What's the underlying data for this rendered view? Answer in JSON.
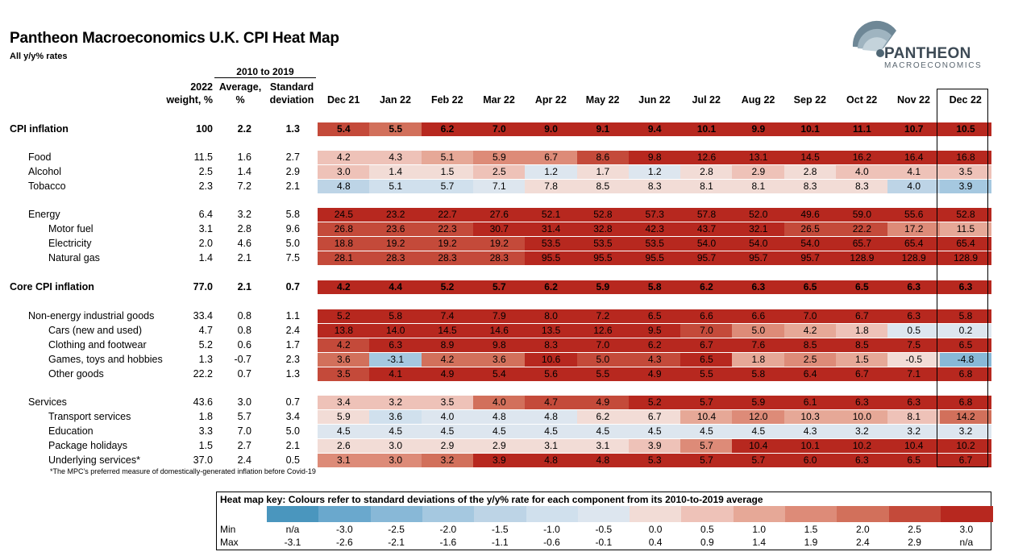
{
  "title": "Pantheon Macroeconomics U.K. CPI Heat Map",
  "subtitle": "All y/y% rates",
  "logo": {
    "word": "PANTHEON",
    "sub": "MACROECONOMICS"
  },
  "header": {
    "group": "2010 to 2019",
    "weight": [
      "2022",
      "weight, %"
    ],
    "average": [
      "Average,",
      "%"
    ],
    "stdev": [
      "Standard",
      "deviation"
    ]
  },
  "footnote": "*The MPC's preferred measure of domestically-generated inflation before Covid-19",
  "colors": {
    "levels": [
      "#4a96be",
      "#6aa8cd",
      "#88b8d7",
      "#a5c8e0",
      "#bdd4e6",
      "#d0e0ed",
      "#dde6ef",
      "#f2dcd6",
      "#eec2b8",
      "#e6a897",
      "#dd8b78",
      "#d2705b",
      "#c44a3a",
      "#b7281f"
    ]
  },
  "chart_data": {
    "type": "heatmap",
    "title": "Pantheon Macroeconomics U.K. CPI Heat Map",
    "months": [
      "Dec 21",
      "Jan 22",
      "Feb 22",
      "Mar 22",
      "Apr 22",
      "May 22",
      "Jun 22",
      "Jul 22",
      "Aug 22",
      "Sep 22",
      "Oct 22",
      "Nov 22",
      "Dec 22"
    ],
    "rows": [
      {
        "label": "CPI inflation",
        "bold": true,
        "indent": 0,
        "weight": "100",
        "avg": "2.2",
        "sd": "1.3",
        "values": [
          "5.4",
          "5.5",
          "6.2",
          "7.0",
          "9.0",
          "9.1",
          "9.4",
          "10.1",
          "9.9",
          "10.1",
          "11.1",
          "10.7",
          "10.5"
        ],
        "levels": [
          12,
          11,
          13,
          13,
          13,
          13,
          13,
          13,
          13,
          13,
          13,
          13,
          13
        ]
      },
      {
        "label": "Food",
        "bold": false,
        "indent": 1,
        "weight": "11.5",
        "avg": "1.6",
        "sd": "2.7",
        "values": [
          "4.2",
          "4.3",
          "5.1",
          "5.9",
          "6.7",
          "8.6",
          "9.8",
          "12.6",
          "13.1",
          "14.5",
          "16.2",
          "16.4",
          "16.8"
        ],
        "levels": [
          8,
          8,
          9,
          10,
          10,
          12,
          13,
          13,
          13,
          13,
          13,
          13,
          13
        ]
      },
      {
        "label": "Alcohol",
        "bold": false,
        "indent": 1,
        "weight": "2.5",
        "avg": "1.4",
        "sd": "2.9",
        "values": [
          "3.0",
          "1.4",
          "1.5",
          "2.5",
          "1.2",
          "1.7",
          "1.2",
          "2.8",
          "2.9",
          "2.8",
          "4.0",
          "4.1",
          "3.5"
        ],
        "levels": [
          8,
          7,
          7,
          8,
          6,
          7,
          6,
          7,
          8,
          7,
          8,
          8,
          8
        ]
      },
      {
        "label": "Tobacco",
        "bold": false,
        "indent": 1,
        "weight": "2.3",
        "avg": "7.2",
        "sd": "2.1",
        "values": [
          "4.8",
          "5.1",
          "5.7",
          "7.1",
          "7.8",
          "8.5",
          "8.3",
          "8.1",
          "8.1",
          "8.3",
          "8.3",
          "4.0",
          "3.9"
        ],
        "levels": [
          4,
          5,
          5,
          6,
          7,
          7,
          7,
          7,
          7,
          7,
          7,
          4,
          3
        ]
      },
      {
        "label": "Energy",
        "bold": false,
        "indent": 1,
        "weight": "6.4",
        "avg": "3.2",
        "sd": "5.8",
        "values": [
          "24.5",
          "23.2",
          "22.7",
          "27.6",
          "52.1",
          "52.8",
          "57.3",
          "57.8",
          "52.0",
          "49.6",
          "59.0",
          "55.6",
          "52.8"
        ],
        "levels": [
          13,
          13,
          13,
          13,
          13,
          13,
          13,
          13,
          13,
          13,
          13,
          13,
          13
        ]
      },
      {
        "label": "Motor fuel",
        "bold": false,
        "indent": 2,
        "weight": "3.1",
        "avg": "2.8",
        "sd": "9.6",
        "values": [
          "26.8",
          "23.6",
          "22.3",
          "30.7",
          "31.4",
          "32.8",
          "42.3",
          "43.7",
          "32.1",
          "26.5",
          "22.2",
          "17.2",
          "11.5"
        ],
        "levels": [
          12,
          12,
          12,
          13,
          13,
          13,
          13,
          13,
          13,
          12,
          12,
          10,
          9
        ]
      },
      {
        "label": "Electricity",
        "bold": false,
        "indent": 2,
        "weight": "2.0",
        "avg": "4.6",
        "sd": "5.0",
        "values": [
          "18.8",
          "19.2",
          "19.2",
          "19.2",
          "53.5",
          "53.5",
          "53.5",
          "54.0",
          "54.0",
          "54.0",
          "65.7",
          "65.4",
          "65.4"
        ],
        "levels": [
          12,
          12,
          12,
          12,
          13,
          13,
          13,
          13,
          13,
          13,
          13,
          13,
          13
        ]
      },
      {
        "label": "Natural gas",
        "bold": false,
        "indent": 2,
        "weight": "1.4",
        "avg": "2.1",
        "sd": "7.5",
        "values": [
          "28.1",
          "28.3",
          "28.3",
          "28.3",
          "95.5",
          "95.5",
          "95.5",
          "95.7",
          "95.7",
          "95.7",
          "128.9",
          "128.9",
          "128.9"
        ],
        "levels": [
          12,
          12,
          12,
          12,
          13,
          13,
          13,
          13,
          13,
          13,
          13,
          13,
          13
        ]
      },
      {
        "label": "Core CPI inflation",
        "bold": true,
        "indent": 0,
        "weight": "77.0",
        "avg": "2.1",
        "sd": "0.7",
        "values": [
          "4.2",
          "4.4",
          "5.2",
          "5.7",
          "6.2",
          "5.9",
          "5.8",
          "6.2",
          "6.3",
          "6.5",
          "6.5",
          "6.3",
          "6.3"
        ],
        "levels": [
          13,
          13,
          13,
          13,
          13,
          13,
          13,
          13,
          13,
          13,
          13,
          13,
          13
        ]
      },
      {
        "label": "Non-energy industrial goods",
        "bold": false,
        "indent": 1,
        "weight": "33.4",
        "avg": "0.8",
        "sd": "1.1",
        "values": [
          "5.2",
          "5.8",
          "7.4",
          "7.9",
          "8.0",
          "7.2",
          "6.5",
          "6.6",
          "6.6",
          "7.0",
          "6.7",
          "6.3",
          "5.8"
        ],
        "levels": [
          13,
          13,
          13,
          13,
          13,
          13,
          13,
          13,
          13,
          13,
          13,
          13,
          13
        ]
      },
      {
        "label": "Cars (new and used)",
        "bold": false,
        "indent": 2,
        "weight": "4.7",
        "avg": "0.8",
        "sd": "2.4",
        "values": [
          "13.8",
          "14.0",
          "14.5",
          "14.6",
          "13.5",
          "12.6",
          "9.5",
          "7.0",
          "5.0",
          "4.2",
          "1.8",
          "0.5",
          "0.2"
        ],
        "levels": [
          13,
          13,
          13,
          13,
          13,
          13,
          13,
          12,
          10,
          9,
          8,
          6,
          6
        ]
      },
      {
        "label": "Clothing and footwear",
        "bold": false,
        "indent": 2,
        "weight": "5.2",
        "avg": "0.6",
        "sd": "1.7",
        "values": [
          "4.2",
          "6.3",
          "8.9",
          "9.8",
          "8.3",
          "7.0",
          "6.2",
          "6.7",
          "7.6",
          "8.5",
          "8.5",
          "7.5",
          "6.5"
        ],
        "levels": [
          12,
          13,
          13,
          13,
          13,
          13,
          13,
          13,
          13,
          13,
          13,
          13,
          13
        ]
      },
      {
        "label": "Games, toys and hobbies",
        "bold": false,
        "indent": 2,
        "weight": "1.3",
        "avg": "-0.7",
        "sd": "2.3",
        "values": [
          "3.6",
          "-3.1",
          "4.2",
          "3.6",
          "10.6",
          "5.0",
          "4.3",
          "6.5",
          "1.8",
          "2.5",
          "1.5",
          "-0.5",
          "-4.8"
        ],
        "levels": [
          11,
          3,
          11,
          11,
          13,
          12,
          12,
          13,
          9,
          10,
          9,
          7,
          2
        ]
      },
      {
        "label": "Other goods",
        "bold": false,
        "indent": 2,
        "weight": "22.2",
        "avg": "0.7",
        "sd": "1.3",
        "values": [
          "3.5",
          "4.1",
          "4.9",
          "5.4",
          "5.6",
          "5.5",
          "4.9",
          "5.5",
          "5.8",
          "6.4",
          "6.7",
          "7.1",
          "6.8"
        ],
        "levels": [
          12,
          13,
          13,
          13,
          13,
          13,
          13,
          13,
          13,
          13,
          13,
          13,
          13
        ]
      },
      {
        "label": "Services",
        "bold": false,
        "indent": 1,
        "weight": "43.6",
        "avg": "3.0",
        "sd": "0.7",
        "values": [
          "3.4",
          "3.2",
          "3.5",
          "4.0",
          "4.7",
          "4.9",
          "5.2",
          "5.7",
          "5.9",
          "6.1",
          "6.3",
          "6.3",
          "6.8"
        ],
        "levels": [
          8,
          8,
          8,
          11,
          12,
          12,
          13,
          13,
          13,
          13,
          13,
          13,
          13
        ]
      },
      {
        "label": "Transport services",
        "bold": false,
        "indent": 2,
        "weight": "1.8",
        "avg": "5.7",
        "sd": "3.4",
        "values": [
          "5.9",
          "3.6",
          "4.0",
          "4.8",
          "4.8",
          "6.2",
          "6.7",
          "10.4",
          "12.0",
          "10.3",
          "10.0",
          "8.1",
          "14.2"
        ],
        "levels": [
          7,
          5,
          6,
          6,
          6,
          7,
          7,
          9,
          10,
          9,
          9,
          8,
          11
        ]
      },
      {
        "label": "Education",
        "bold": false,
        "indent": 2,
        "weight": "3.3",
        "avg": "7.0",
        "sd": "5.0",
        "values": [
          "4.5",
          "4.5",
          "4.5",
          "4.5",
          "4.5",
          "4.5",
          "4.5",
          "4.5",
          "4.5",
          "4.3",
          "3.2",
          "3.2",
          "3.2"
        ],
        "levels": [
          6,
          6,
          6,
          6,
          6,
          6,
          6,
          6,
          6,
          6,
          6,
          6,
          6
        ]
      },
      {
        "label": "Package holidays",
        "bold": false,
        "indent": 2,
        "weight": "1.5",
        "avg": "2.7",
        "sd": "2.1",
        "values": [
          "2.6",
          "3.0",
          "2.9",
          "2.9",
          "3.1",
          "3.1",
          "3.9",
          "5.7",
          "10.4",
          "10.1",
          "10.2",
          "10.4",
          "10.2"
        ],
        "levels": [
          7,
          7,
          7,
          7,
          7,
          7,
          8,
          10,
          13,
          13,
          13,
          13,
          13
        ]
      },
      {
        "label": "Underlying services*",
        "bold": false,
        "indent": 2,
        "weight": "37.0",
        "avg": "2.4",
        "sd": "0.5",
        "values": [
          "3.1",
          "3.0",
          "3.2",
          "3.9",
          "4.8",
          "4.8",
          "5.3",
          "5.7",
          "5.7",
          "6.0",
          "6.3",
          "6.5",
          "6.7"
        ],
        "levels": [
          10,
          10,
          11,
          13,
          13,
          13,
          13,
          13,
          13,
          13,
          13,
          13,
          13
        ]
      }
    ]
  },
  "key": {
    "title": "Heat map key: Colours refer to standard deviations of the y/y% rate for each component from its 2010-to-2019 average",
    "min_label": "Min",
    "max_label": "Max",
    "min": [
      "n/a",
      "-3.0",
      "-2.5",
      "-2.0",
      "-1.5",
      "-1.0",
      "-0.5",
      "0.0",
      "0.5",
      "1.0",
      "1.5",
      "2.0",
      "2.5",
      "3.0"
    ],
    "max": [
      "-3.1",
      "-2.6",
      "-2.1",
      "-1.6",
      "-1.1",
      "-0.6",
      "-0.1",
      "0.4",
      "0.9",
      "1.4",
      "1.9",
      "2.4",
      "2.9",
      "n/a"
    ]
  }
}
